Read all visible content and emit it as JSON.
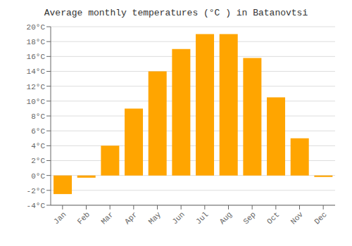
{
  "chart_data": {
    "type": "bar",
    "title": "Average monthly temperatures (°C ) in Batanovtsi",
    "categories": [
      "Jan",
      "Feb",
      "Mar",
      "Apr",
      "May",
      "Jun",
      "Jul",
      "Aug",
      "Sep",
      "Oct",
      "Nov",
      "Dec"
    ],
    "values": [
      -2.5,
      -0.3,
      4.0,
      9.0,
      14.0,
      17.0,
      19.0,
      19.0,
      15.8,
      10.5,
      5.0,
      -0.2
    ],
    "color": "#FFA500",
    "ylim": [
      -4,
      20
    ],
    "yticks": [
      {
        "value": -4,
        "label": "-4°C"
      },
      {
        "value": -2,
        "label": "-2°C"
      },
      {
        "value": 0,
        "label": "0°C"
      },
      {
        "value": 2,
        "label": "2°C"
      },
      {
        "value": 4,
        "label": "4°C"
      },
      {
        "value": 6,
        "label": "6°C"
      },
      {
        "value": 8,
        "label": "8°C"
      },
      {
        "value": 10,
        "label": "10°C"
      },
      {
        "value": 12,
        "label": "12°C"
      },
      {
        "value": 14,
        "label": "14°C"
      },
      {
        "value": 16,
        "label": "16°C"
      },
      {
        "value": 18,
        "label": "18°C"
      },
      {
        "value": 20,
        "label": "20°C"
      }
    ],
    "grid": true
  }
}
